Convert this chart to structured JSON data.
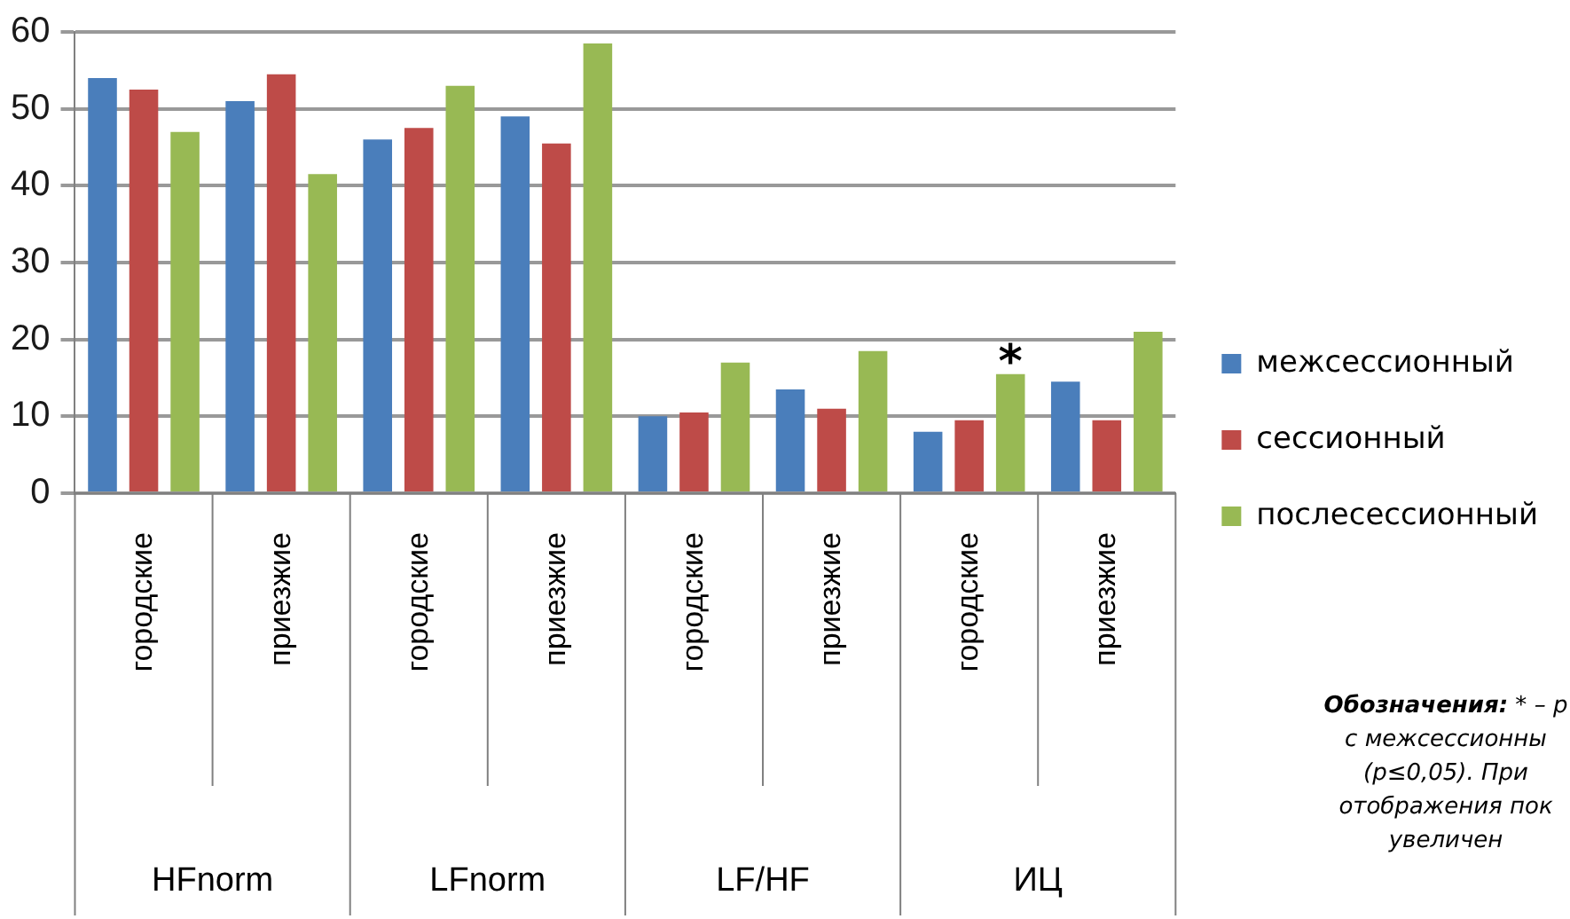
{
  "chart_data": {
    "type": "bar",
    "categories": [
      "городские",
      "приезжие",
      "городские",
      "приезжие",
      "городские",
      "приезжие",
      "городские",
      "приезжие"
    ],
    "series": [
      {
        "name": "межсессионный",
        "color": "#4a7ebb",
        "values": [
          54,
          51,
          46,
          49,
          10,
          13.5,
          8,
          14.5
        ]
      },
      {
        "name": "сессионный",
        "color": "#be4b48",
        "values": [
          52.5,
          54.5,
          47.5,
          45.5,
          10.5,
          11,
          9.5,
          9.5
        ]
      },
      {
        "name": "послесессионный",
        "color": "#98b954",
        "values": [
          47,
          41.5,
          53,
          58.5,
          17,
          18.5,
          15.5,
          21
        ],
        "value_labels": [
          null,
          null,
          null,
          null,
          null,
          null,
          "*",
          null
        ]
      }
    ],
    "ylim": [
      0,
      60
    ],
    "yticks": [
      0,
      10,
      20,
      30,
      40,
      50,
      60
    ],
    "grid": "y",
    "legend": "right",
    "annotations": [
      "HFnorm",
      "LFnorm",
      "LF/HF",
      "ИЦ",
      "Обозначения: * – р\nс межсессионны\n(p≤0,05). При\nотображения пок\nувеличен"
    ]
  }
}
